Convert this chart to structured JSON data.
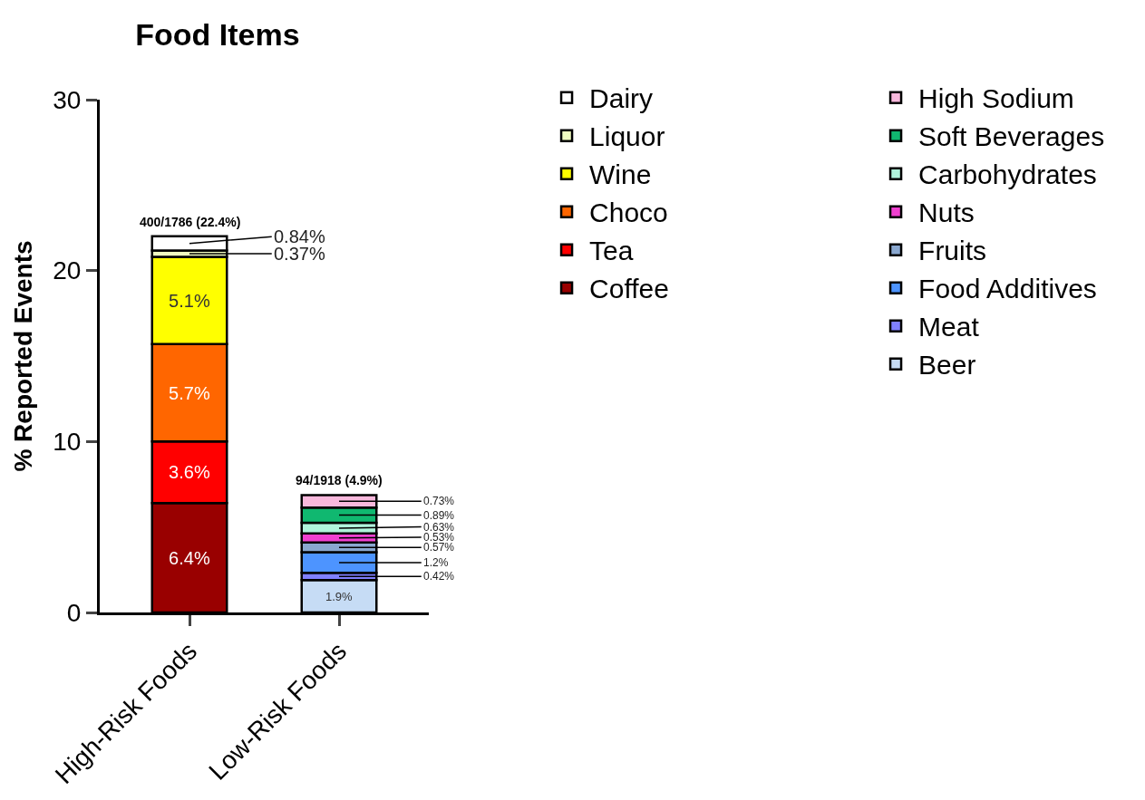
{
  "chart_data": {
    "type": "bar",
    "stacked": true,
    "title": "Food Items",
    "ylabel": "% Reported Events",
    "categories": [
      "High-Risk Foods",
      "Low-Risk Foods"
    ],
    "ylim": [
      0,
      30
    ],
    "yticks": [
      0,
      10,
      20,
      30
    ],
    "legend": "top right",
    "totals": [
      "400/1786 (22.4%)",
      "94/1918 (4.9%)"
    ],
    "series": [
      {
        "name": "Coffee",
        "color": "#990000",
        "values": [
          6.4,
          null
        ],
        "value_labels": [
          "6.4%",
          null
        ]
      },
      {
        "name": "Tea",
        "color": "#ff0000",
        "values": [
          3.6,
          null
        ],
        "value_labels": [
          "3.6%",
          null
        ]
      },
      {
        "name": "Choco",
        "color": "#ff6600",
        "values": [
          5.7,
          null
        ],
        "value_labels": [
          "5.7%",
          null
        ]
      },
      {
        "name": "Wine",
        "color": "#ffff00",
        "values": [
          5.1,
          null
        ],
        "value_labels": [
          "5.1%",
          null
        ]
      },
      {
        "name": "Liquor",
        "color": "#f0fcc0",
        "values": [
          0.37,
          null
        ],
        "value_labels": [
          "0.37%",
          null
        ]
      },
      {
        "name": "Dairy",
        "color": "#ffffff",
        "values": [
          0.84,
          null
        ],
        "value_labels": [
          "0.84%",
          null
        ]
      },
      {
        "name": "Beer",
        "color": "#c6dcf5",
        "values": [
          null,
          1.9
        ],
        "value_labels": [
          null,
          "1.9%"
        ]
      },
      {
        "name": "Meat",
        "color": "#8080ff",
        "values": [
          null,
          0.42
        ],
        "value_labels": [
          null,
          "0.42%"
        ]
      },
      {
        "name": "Food Additives",
        "color": "#4d94ff",
        "values": [
          null,
          1.2
        ],
        "value_labels": [
          null,
          "1.2%"
        ]
      },
      {
        "name": "Fruits",
        "color": "#8aa8d0",
        "values": [
          null,
          0.57
        ],
        "value_labels": [
          null,
          "0.57%"
        ]
      },
      {
        "name": "Nuts",
        "color": "#f040d0",
        "values": [
          null,
          0.53
        ],
        "value_labels": [
          null,
          "0.53%"
        ]
      },
      {
        "name": "Carbohydrates",
        "color": "#b0f5dc",
        "values": [
          null,
          0.63
        ],
        "value_labels": [
          null,
          "0.63%"
        ]
      },
      {
        "name": "Soft Beverages",
        "color": "#10b870",
        "values": [
          null,
          0.89
        ],
        "value_labels": [
          null,
          "0.89%"
        ]
      },
      {
        "name": "High Sodium",
        "color": "#f8b8dc",
        "values": [
          null,
          0.73
        ],
        "value_labels": [
          null,
          "0.73%"
        ]
      }
    ]
  }
}
